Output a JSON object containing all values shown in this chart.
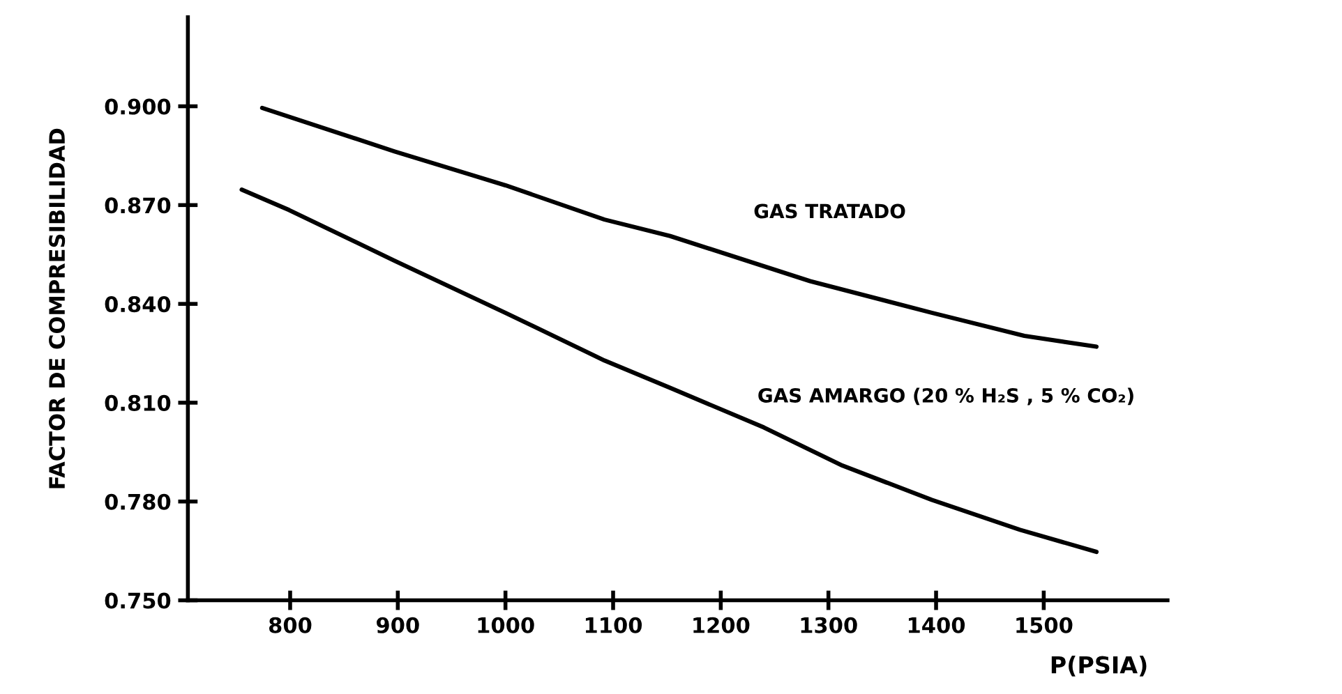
{
  "chart_data": {
    "type": "line",
    "xlabel": "P(PSIA)",
    "ylabel": "FACTOR DE COMPRESIBILIDAD",
    "xlim": [
      705,
      1615
    ],
    "ylim": [
      0.75,
      0.927
    ],
    "xticks": [
      800,
      900,
      1000,
      1100,
      1200,
      1300,
      1400,
      1500
    ],
    "yticks": [
      {
        "value": 0.75,
        "label": "0.750"
      },
      {
        "value": 0.78,
        "label": "0.780"
      },
      {
        "value": 0.81,
        "label": "0.810"
      },
      {
        "value": 0.84,
        "label": "0.840"
      },
      {
        "value": 0.87,
        "label": "0.870"
      },
      {
        "value": 0.9,
        "label": "0.900"
      }
    ],
    "grid": false,
    "legend": false,
    "marker": "none",
    "line_style": "solid",
    "series": [
      {
        "name": "GAS TRATADO",
        "color": "#000000",
        "x": [
          774,
          897,
          1000,
          1092,
          1153,
          1283,
          1396,
          1482,
          1549
        ],
        "values": [
          0.8995,
          0.8863,
          0.876,
          0.8656,
          0.8606,
          0.8469,
          0.8373,
          0.8303,
          0.827
        ]
      },
      {
        "name": "GAS AMARGO (20 % H₂S , 5 % CO₂)",
        "color": "#000000",
        "x": [
          755,
          799,
          897,
          1000,
          1092,
          1153,
          1240,
          1313,
          1396,
          1478,
          1549
        ],
        "values": [
          0.8747,
          0.8685,
          0.8531,
          0.8373,
          0.8228,
          0.8145,
          0.8025,
          0.7909,
          0.7805,
          0.7714,
          0.7647
        ]
      }
    ]
  }
}
